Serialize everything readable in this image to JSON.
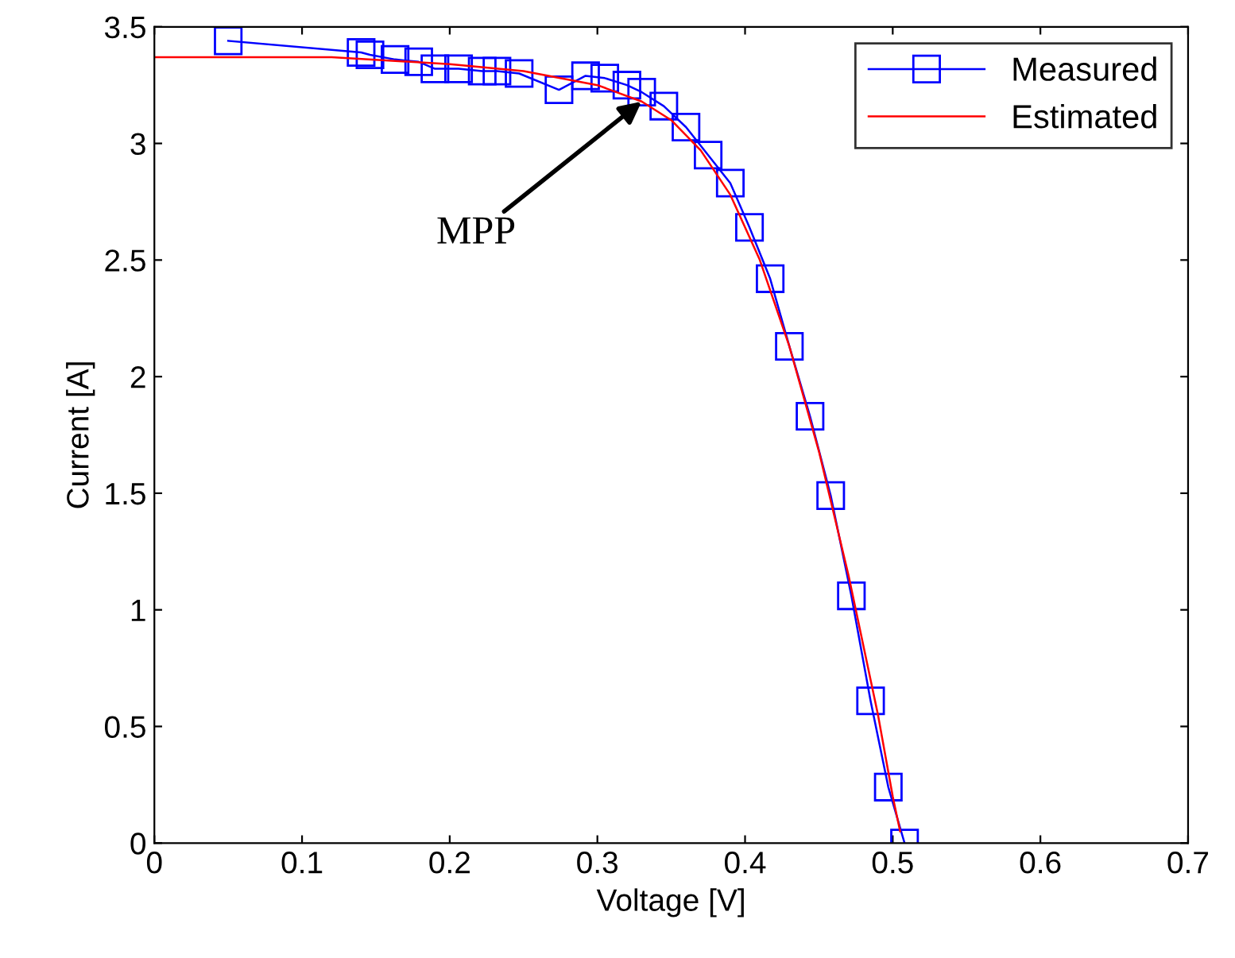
{
  "chart_data": {
    "type": "line",
    "xlabel": "Voltage [V]",
    "ylabel": "Current [A]",
    "xlim": [
      0,
      0.7
    ],
    "xticks": [
      0,
      0.1,
      0.2,
      0.3,
      0.4,
      0.5,
      0.6,
      0.7
    ],
    "ylim": [
      0,
      3.5
    ],
    "yticks": [
      0,
      0.5,
      1,
      1.5,
      2,
      2.5,
      3,
      3.5
    ],
    "grid": false,
    "legend": "top right",
    "annotations": [
      {
        "text": "MPP",
        "x": 0.33,
        "y": 3.18
      }
    ],
    "series": [
      {
        "name": "Measured",
        "color": "#0000ff",
        "marker": "square",
        "x": [
          0.05,
          0.14,
          0.146,
          0.163,
          0.179,
          0.19,
          0.206,
          0.222,
          0.232,
          0.247,
          0.274,
          0.292,
          0.305,
          0.32,
          0.33,
          0.345,
          0.36,
          0.375,
          0.39,
          0.403,
          0.417,
          0.43,
          0.444,
          0.458,
          0.472,
          0.485,
          0.497,
          0.508
        ],
        "values": [
          3.44,
          3.39,
          3.38,
          3.36,
          3.35,
          3.32,
          3.32,
          3.31,
          3.31,
          3.3,
          3.23,
          3.29,
          3.28,
          3.25,
          3.22,
          3.16,
          3.07,
          2.95,
          2.83,
          2.64,
          2.42,
          2.13,
          1.83,
          1.49,
          1.06,
          0.61,
          0.24,
          0.0
        ]
      },
      {
        "name": "Estimated",
        "color": "#ff0000",
        "marker": "none",
        "x": [
          0,
          0.12,
          0.2,
          0.25,
          0.3,
          0.33,
          0.35,
          0.37,
          0.39,
          0.41,
          0.43,
          0.45,
          0.47,
          0.49,
          0.5,
          0.505
        ],
        "values": [
          3.37,
          3.37,
          3.34,
          3.31,
          3.25,
          3.18,
          3.1,
          2.97,
          2.78,
          2.5,
          2.13,
          1.68,
          1.15,
          0.55,
          0.2,
          0.05
        ]
      }
    ]
  }
}
